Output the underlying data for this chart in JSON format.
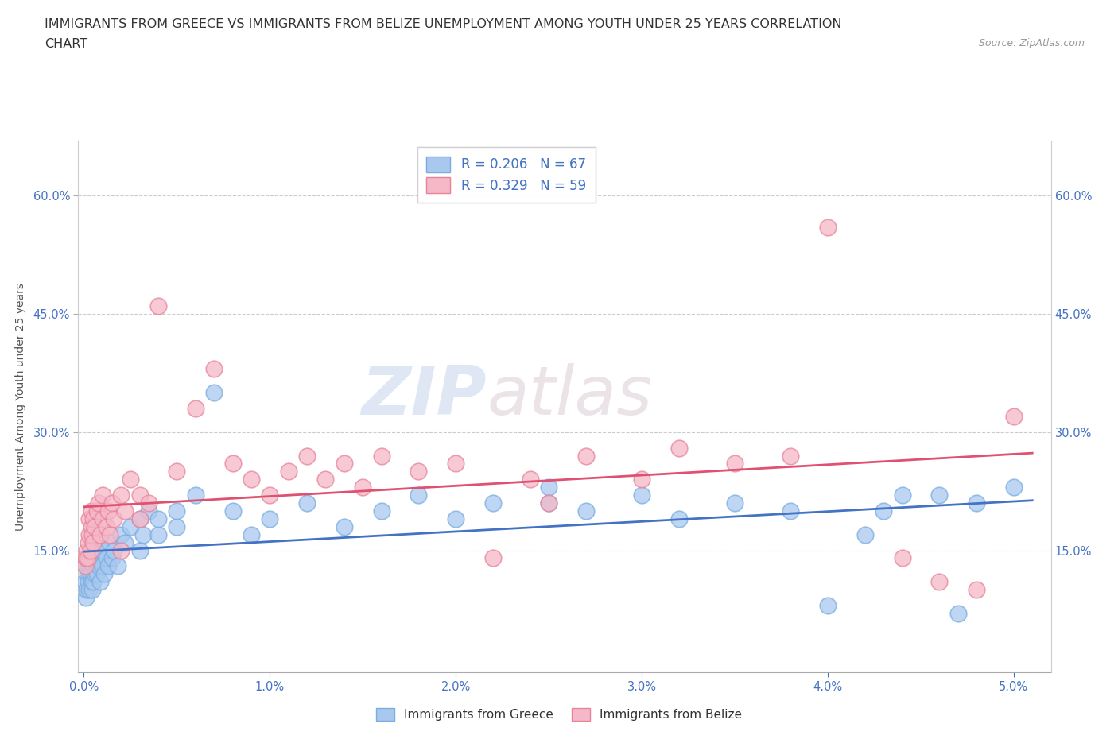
{
  "title_line1": "IMMIGRANTS FROM GREECE VS IMMIGRANTS FROM BELIZE UNEMPLOYMENT AMONG YOUTH UNDER 25 YEARS CORRELATION",
  "title_line2": "CHART",
  "source": "Source: ZipAtlas.com",
  "ylabel": "Unemployment Among Youth under 25 years",
  "watermark_zip": "ZIP",
  "watermark_atlas": "atlas",
  "legend_label_greece": "R = 0.206   N = 67",
  "legend_label_belize": "R = 0.329   N = 59",
  "bottom_legend_greece": "Immigrants from Greece",
  "bottom_legend_belize": "Immigrants from Belize",
  "xlim": [
    -0.0003,
    0.052
  ],
  "ylim": [
    -0.005,
    0.67
  ],
  "xticks": [
    0.0,
    0.01,
    0.02,
    0.03,
    0.04,
    0.05
  ],
  "xtick_labels": [
    "0.0%",
    "1.0%",
    "2.0%",
    "3.0%",
    "4.0%",
    "5.0%"
  ],
  "yticks": [
    0.15,
    0.3,
    0.45,
    0.6
  ],
  "ytick_labels": [
    "15.0%",
    "30.0%",
    "45.0%",
    "60.0%"
  ],
  "greece_color": "#a8c8f0",
  "belize_color": "#f5b8c8",
  "greece_edge_color": "#7aaee0",
  "belize_edge_color": "#e8849a",
  "greece_line_color": "#4472c4",
  "belize_line_color": "#e05070",
  "background_color": "#ffffff",
  "grid_color": "#cccccc",
  "title_fontsize": 11.5,
  "axis_label_fontsize": 10,
  "tick_fontsize": 10.5,
  "legend_fontsize": 12,
  "source_fontsize": 9,
  "greece_x": [
    5e-05,
    0.0001,
    0.0001,
    0.00015,
    0.0002,
    0.0002,
    0.00025,
    0.0003,
    0.0003,
    0.00035,
    0.0004,
    0.0004,
    0.00045,
    0.0005,
    0.0005,
    0.0006,
    0.0006,
    0.0007,
    0.0007,
    0.0008,
    0.0009,
    0.001,
    0.001,
    0.0011,
    0.0012,
    0.0013,
    0.0014,
    0.0015,
    0.0016,
    0.0018,
    0.002,
    0.0022,
    0.0025,
    0.003,
    0.003,
    0.0032,
    0.0035,
    0.004,
    0.004,
    0.005,
    0.005,
    0.006,
    0.007,
    0.008,
    0.009,
    0.01,
    0.012,
    0.014,
    0.016,
    0.018,
    0.02,
    0.022,
    0.025,
    0.025,
    0.027,
    0.03,
    0.032,
    0.035,
    0.038,
    0.04,
    0.042,
    0.043,
    0.044,
    0.046,
    0.047,
    0.048,
    0.05
  ],
  "greece_y": [
    0.11,
    0.09,
    0.13,
    0.1,
    0.12,
    0.14,
    0.11,
    0.1,
    0.13,
    0.12,
    0.11,
    0.14,
    0.1,
    0.13,
    0.11,
    0.12,
    0.15,
    0.12,
    0.14,
    0.13,
    0.11,
    0.13,
    0.15,
    0.12,
    0.14,
    0.13,
    0.16,
    0.14,
    0.15,
    0.13,
    0.17,
    0.16,
    0.18,
    0.19,
    0.15,
    0.17,
    0.2,
    0.17,
    0.19,
    0.18,
    0.2,
    0.22,
    0.35,
    0.2,
    0.17,
    0.19,
    0.21,
    0.18,
    0.2,
    0.22,
    0.19,
    0.21,
    0.21,
    0.23,
    0.2,
    0.22,
    0.19,
    0.21,
    0.2,
    0.08,
    0.17,
    0.2,
    0.22,
    0.22,
    0.07,
    0.21,
    0.23
  ],
  "belize_x": [
    5e-05,
    0.0001,
    0.00015,
    0.0002,
    0.00025,
    0.0003,
    0.0003,
    0.00035,
    0.0004,
    0.0004,
    0.00045,
    0.0005,
    0.0005,
    0.0006,
    0.0007,
    0.0008,
    0.0009,
    0.001,
    0.001,
    0.0012,
    0.0013,
    0.0014,
    0.0015,
    0.0016,
    0.002,
    0.002,
    0.0022,
    0.0025,
    0.003,
    0.003,
    0.0035,
    0.004,
    0.005,
    0.006,
    0.007,
    0.008,
    0.009,
    0.01,
    0.011,
    0.012,
    0.013,
    0.014,
    0.015,
    0.016,
    0.018,
    0.02,
    0.022,
    0.024,
    0.025,
    0.027,
    0.03,
    0.032,
    0.035,
    0.038,
    0.04,
    0.044,
    0.046,
    0.048,
    0.05
  ],
  "belize_y": [
    0.13,
    0.14,
    0.15,
    0.14,
    0.16,
    0.17,
    0.19,
    0.15,
    0.18,
    0.2,
    0.17,
    0.16,
    0.19,
    0.18,
    0.2,
    0.21,
    0.17,
    0.19,
    0.22,
    0.18,
    0.2,
    0.17,
    0.21,
    0.19,
    0.22,
    0.15,
    0.2,
    0.24,
    0.19,
    0.22,
    0.21,
    0.46,
    0.25,
    0.33,
    0.38,
    0.26,
    0.24,
    0.22,
    0.25,
    0.27,
    0.24,
    0.26,
    0.23,
    0.27,
    0.25,
    0.26,
    0.14,
    0.24,
    0.21,
    0.27,
    0.24,
    0.28,
    0.26,
    0.27,
    0.56,
    0.14,
    0.11,
    0.1,
    0.32
  ]
}
